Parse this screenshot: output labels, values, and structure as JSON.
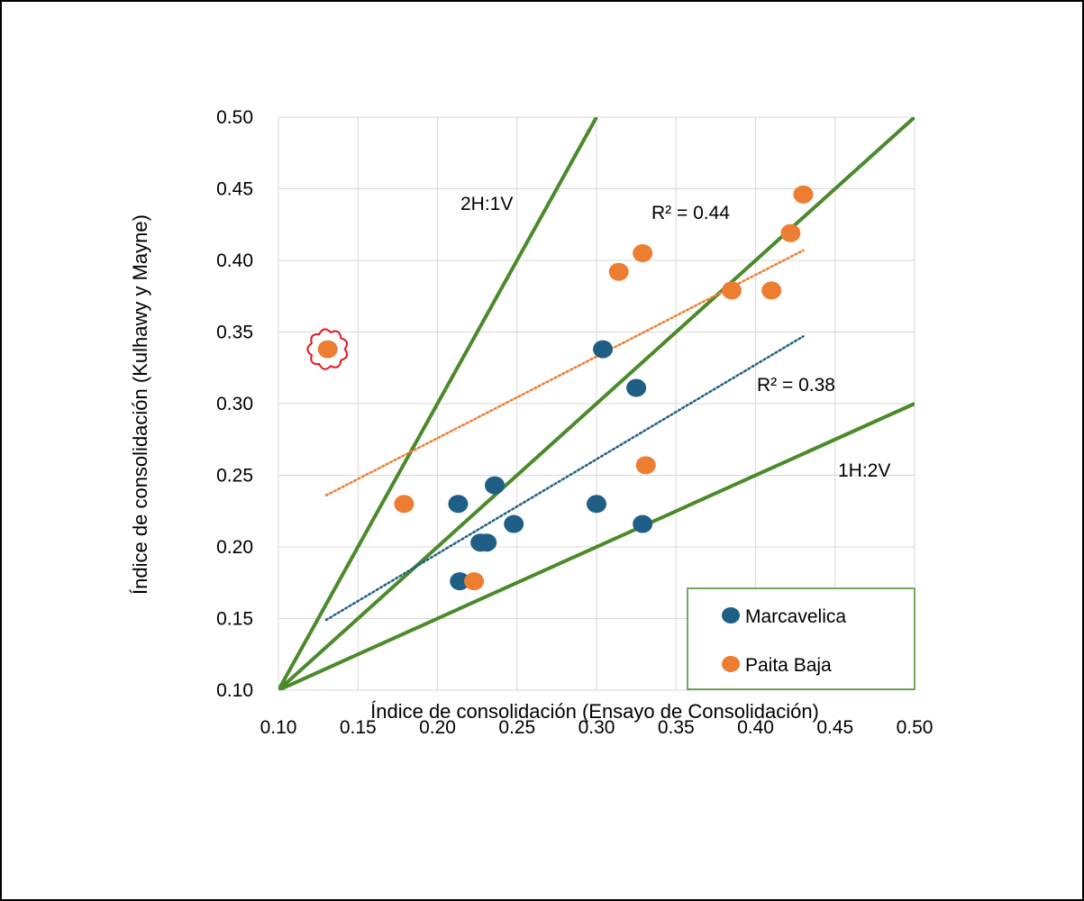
{
  "chart_data": {
    "type": "scatter",
    "title": "",
    "xlabel": "Índice de consolidación (Ensayo de Consolidación)",
    "ylabel": "Índice de consolidación (Kulhawy y Mayne)",
    "xlim": [
      0.1,
      0.5
    ],
    "ylim": [
      0.1,
      0.5
    ],
    "xticks": [
      "0.10",
      "0.15",
      "0.20",
      "0.25",
      "0.30",
      "0.35",
      "0.40",
      "0.45",
      "0.50"
    ],
    "yticks": [
      "0.10",
      "0.15",
      "0.20",
      "0.25",
      "0.30",
      "0.35",
      "0.40",
      "0.45",
      "0.50"
    ],
    "grid": true,
    "legend_position": "bottom-right",
    "series": [
      {
        "name": "Marcavelica",
        "color": "#1f5f86",
        "points": [
          [
            0.304,
            0.338
          ],
          [
            0.325,
            0.311
          ],
          [
            0.236,
            0.243
          ],
          [
            0.213,
            0.23
          ],
          [
            0.3,
            0.23
          ],
          [
            0.248,
            0.216
          ],
          [
            0.329,
            0.216
          ],
          [
            0.227,
            0.203
          ],
          [
            0.231,
            0.203
          ],
          [
            0.214,
            0.176
          ]
        ],
        "trendline": {
          "x": [
            0.13,
            0.43
          ],
          "y": [
            0.149,
            0.347
          ],
          "r2_label": "R² = 0.38"
        }
      },
      {
        "name": "Paita Baja",
        "color": "#ed7d31",
        "points": [
          [
            0.43,
            0.446
          ],
          [
            0.422,
            0.419
          ],
          [
            0.329,
            0.405
          ],
          [
            0.314,
            0.392
          ],
          [
            0.385,
            0.379
          ],
          [
            0.41,
            0.379
          ],
          [
            0.131,
            0.338
          ],
          [
            0.331,
            0.257
          ],
          [
            0.179,
            0.23
          ],
          [
            0.223,
            0.176
          ]
        ],
        "trendline": {
          "x": [
            0.13,
            0.43
          ],
          "y": [
            0.236,
            0.407
          ],
          "r2_label": "R² = 0.44"
        }
      }
    ],
    "reference_lines": [
      {
        "label": "2H:1V",
        "x": [
          0.1,
          0.3
        ],
        "y": [
          0.1,
          0.5
        ]
      },
      {
        "label": "",
        "x": [
          0.1,
          0.5
        ],
        "y": [
          0.1,
          0.5
        ]
      },
      {
        "label": "1H:2V",
        "x": [
          0.1,
          0.5
        ],
        "y": [
          0.1,
          0.3
        ]
      }
    ],
    "reference_line_color": "#4a8a2a",
    "highlight_point": {
      "series": "Paita Baja",
      "x": 0.131,
      "y": 0.338,
      "color": "#e8141c"
    }
  }
}
